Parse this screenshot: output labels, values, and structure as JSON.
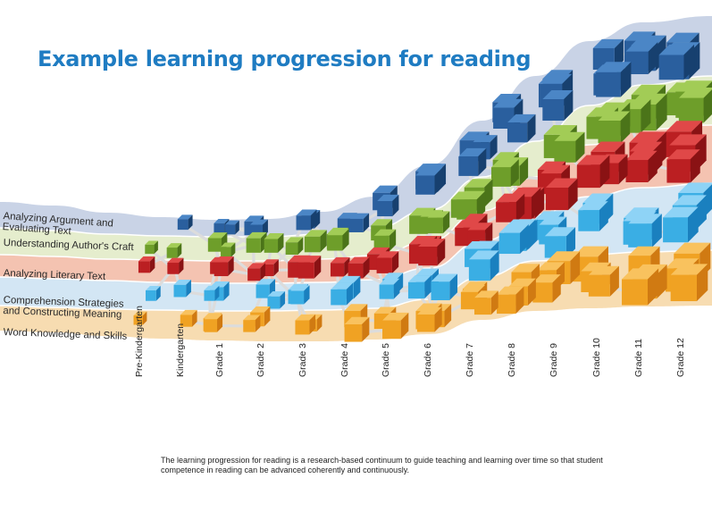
{
  "title": "Example learning progression for reading",
  "bands": [
    {
      "label_lines": [
        "Analyzing Argument and",
        "Evaluating Text"
      ],
      "fill": "#c9d3e6",
      "cube": [
        "#4b86c6",
        "#2a5f9e",
        "#17406f"
      ]
    },
    {
      "label_lines": [
        "Understanding Author's Craft"
      ],
      "fill": "#e5edcd",
      "cube": [
        "#a2cc56",
        "#6e9e2a",
        "#4b7419"
      ]
    },
    {
      "label_lines": [
        "Analyzing Literary Text"
      ],
      "fill": "#f4c3b1",
      "cube": [
        "#e04848",
        "#bb1f22",
        "#8a1214"
      ]
    },
    {
      "label_lines": [
        "Comprehension Strategies",
        "and Constructing Meaning"
      ],
      "fill": "#d3e6f4",
      "cube": [
        "#8ed3f6",
        "#3aaee4",
        "#1a80bf"
      ]
    },
    {
      "label_lines": [
        "Word Knowledge and Skills"
      ],
      "fill": "#f7dcb1",
      "cube": [
        "#f9c25e",
        "#f0a223",
        "#d07a12"
      ]
    }
  ],
  "grades": [
    "Pre-Kindergarten",
    "Kindergarten",
    "Grade 1",
    "Grade 2",
    "Grade 3",
    "Grade 4",
    "Grade 5",
    "Grade 6",
    "Grade 7",
    "Grade 8",
    "Grade 9",
    "Grade 10",
    "Grade 11",
    "Grade 12"
  ],
  "caption": "The learning progression for reading is a research-based continuum to guide teaching and learning over time so that student competence in reading can be advanced coherently and continuously.",
  "connector_color": "#dcdcdc"
}
